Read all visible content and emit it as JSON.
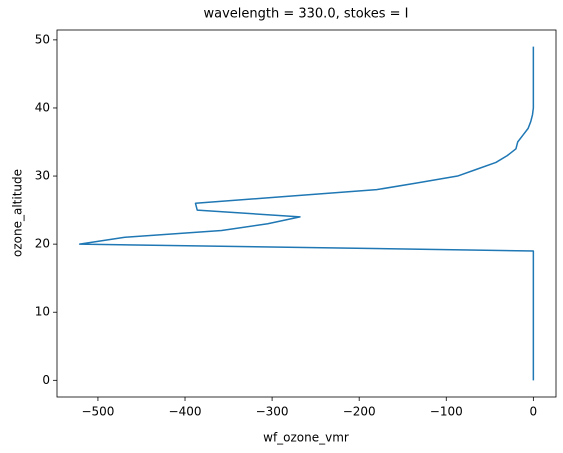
{
  "chart_data": {
    "type": "line",
    "title": "wavelength = 330.0, stokes = I",
    "x_label": "wf_ozone_vmr",
    "y_label": "ozone_altitude",
    "series": [
      {
        "color": "#1f77b4",
        "x": [
          0,
          0,
          0,
          0,
          0,
          0,
          0,
          0,
          0,
          0,
          0,
          0,
          0,
          0,
          0,
          0,
          0,
          0,
          0,
          0,
          -521,
          -470,
          -358,
          -305,
          -268,
          -386,
          -388,
          -285,
          -180,
          -133,
          -87,
          -65,
          -43,
          -30,
          -20,
          -18,
          -12,
          -6,
          -3,
          -1,
          0,
          0,
          0,
          0,
          0,
          0,
          0,
          0,
          0,
          0
        ],
        "values": [
          0,
          1,
          2,
          3,
          4,
          5,
          6,
          7,
          8,
          9,
          10,
          11,
          12,
          13,
          14,
          15,
          16,
          17,
          18,
          19,
          20,
          21,
          22,
          23,
          24,
          25,
          26,
          27,
          28,
          29,
          30,
          31,
          32,
          33,
          34,
          35,
          36,
          37,
          38,
          39,
          40,
          41,
          42,
          43,
          44,
          45,
          46,
          47,
          48,
          49
        ]
      }
    ],
    "xlim": [
      -547,
      26
    ],
    "ylim": [
      -2.45,
      51.45
    ],
    "xticks": [
      {
        "value": -500,
        "label": "−500"
      },
      {
        "value": -400,
        "label": "−400"
      },
      {
        "value": -300,
        "label": "−300"
      },
      {
        "value": -200,
        "label": "−200"
      },
      {
        "value": -100,
        "label": "−100"
      },
      0
    ],
    "yticks": [
      0,
      10,
      20,
      30,
      40,
      50
    ],
    "grid": false
  }
}
